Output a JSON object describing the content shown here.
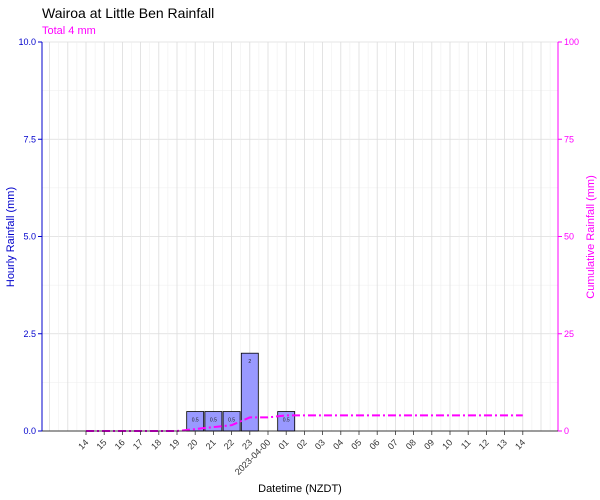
{
  "chart_data": {
    "type": "bar",
    "title": "Wairoa at Little Ben Rainfall",
    "subtitle": "Total 4 mm",
    "xlabel": "Datetime (NZDT)",
    "ylabel": "Hourly Rainfall (mm)",
    "y2label": "Cumulative Rainfall (mm)",
    "ylim": [
      0,
      10
    ],
    "y2lim": [
      0,
      100
    ],
    "yticks": [
      "0.0",
      "2.5",
      "5.0",
      "7.5",
      "10.0"
    ],
    "y2ticks": [
      "0",
      "25",
      "50",
      "75",
      "100"
    ],
    "categories": [
      "14",
      "15",
      "16",
      "17",
      "18",
      "19",
      "20",
      "21",
      "22",
      "23",
      "2023-04-00",
      "01",
      "02",
      "03",
      "04",
      "05",
      "06",
      "07",
      "08",
      "09",
      "10",
      "11",
      "12",
      "13",
      "14"
    ],
    "series": [
      {
        "type": "bar",
        "values": [
          0,
          0,
          0,
          0,
          0,
          0,
          0.5,
          0.5,
          0.5,
          2,
          0,
          0.5,
          0,
          0,
          0,
          0,
          0,
          0,
          0,
          0,
          0,
          0,
          0,
          0,
          0
        ],
        "labels": [
          "",
          "",
          "",
          "",
          "",
          "",
          "0.5",
          "0.5",
          "0.5",
          "2",
          "",
          "0.5",
          "",
          "",
          "",
          "",
          "",
          "",
          "",
          "",
          "",
          "",
          "",
          "",
          ""
        ]
      },
      {
        "type": "line",
        "axis": "right",
        "values": [
          0,
          0,
          0,
          0,
          0,
          0,
          0.5,
          1,
          1.5,
          3.5,
          3.5,
          4,
          4,
          4,
          4,
          4,
          4,
          4,
          4,
          4,
          4,
          4,
          4,
          4,
          4
        ]
      }
    ],
    "grid": true,
    "colors": {
      "bar_fill": "#9999ff",
      "bar_stroke": "#000000",
      "line": "#ff00ff",
      "left_axis": "#0000cc",
      "right_axis": "#ff00ff",
      "grid": "#e6e6e6"
    }
  }
}
